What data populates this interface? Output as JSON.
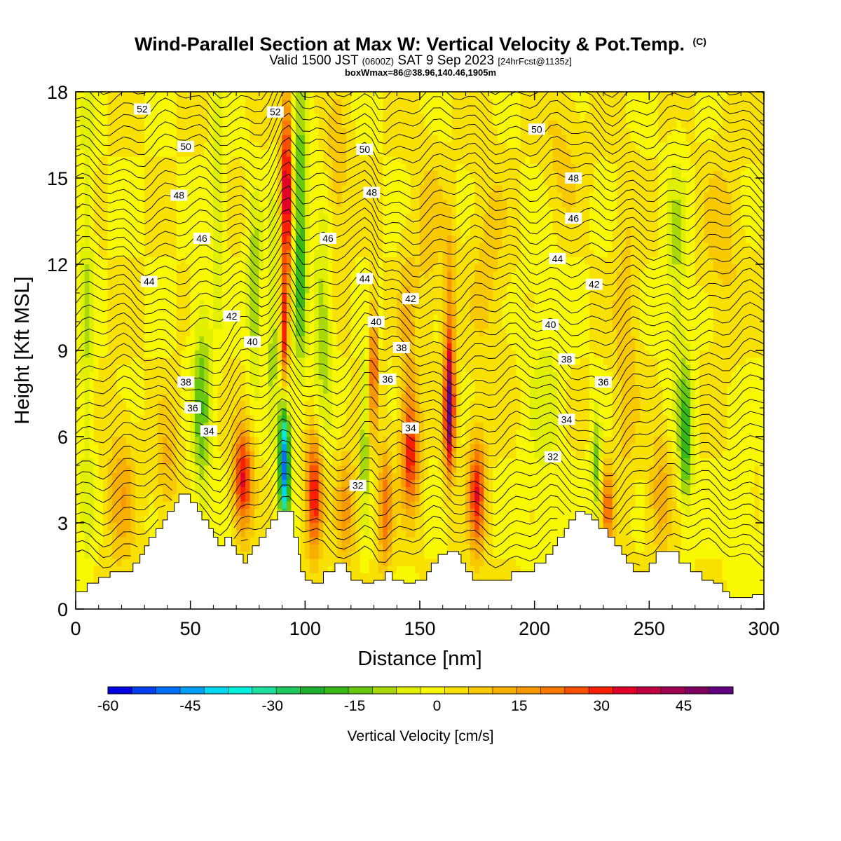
{
  "header": {
    "title": "Wind-Parallel Section at Max W: Vertical Velocity & Pot.Temp.",
    "title_tag": "(C)",
    "subtitle_valid": "Valid 1500 JST",
    "subtitle_zulu": "(0600Z)",
    "subtitle_date": "SAT 9 Sep 2023",
    "subtitle_fcst": "[24hrFcst@1135z]",
    "box_info": "boxWmax=86@38.96,140.46,1905m"
  },
  "chart_data": {
    "type": "heatmap",
    "xlabel": "Distance [nm]",
    "ylabel": "Height [Kft MSL]",
    "xlim": [
      0,
      300
    ],
    "ylim": [
      0,
      18
    ],
    "x_ticks": [
      "0",
      "50",
      "100",
      "150",
      "200",
      "250",
      "300"
    ],
    "y_ticks": [
      "0",
      "3",
      "6",
      "9",
      "12",
      "15",
      "18"
    ],
    "colorbar": {
      "label": "Vertical Velocity [cm/s]",
      "range": [
        -60,
        54
      ],
      "step": 4.5,
      "tick_labels": [
        "-60",
        "-45",
        "-30",
        "-15",
        "0",
        "15",
        "30",
        "45"
      ],
      "colors": [
        "#0000e0",
        "#0040f0",
        "#0070f8",
        "#00a0f8",
        "#00d8f0",
        "#00f0e0",
        "#20e0a0",
        "#20c860",
        "#20b030",
        "#38b818",
        "#68c810",
        "#a8d808",
        "#e0f000",
        "#f8f800",
        "#f8e000",
        "#f8c800",
        "#f8b000",
        "#f89800",
        "#f87800",
        "#f85000",
        "#f82000",
        "#e00028",
        "#c00040",
        "#a00050",
        "#800060",
        "#600080"
      ]
    },
    "contour_label": "Potential temperature (C)",
    "contour_levels": [
      "32",
      "34",
      "36",
      "38",
      "40",
      "42",
      "44",
      "46",
      "48",
      "50",
      "52"
    ],
    "terrain_kft": [
      [
        0,
        0.6
      ],
      [
        5,
        0.6
      ],
      [
        5,
        0.9
      ],
      [
        10,
        0.9
      ],
      [
        10,
        1.1
      ],
      [
        15,
        1.1
      ],
      [
        15,
        1.3
      ],
      [
        25,
        1.3
      ],
      [
        25,
        1.6
      ],
      [
        28,
        1.6
      ],
      [
        28,
        1.9
      ],
      [
        30,
        1.9
      ],
      [
        30,
        2.2
      ],
      [
        32,
        2.2
      ],
      [
        32,
        2.5
      ],
      [
        35,
        2.5
      ],
      [
        35,
        2.8
      ],
      [
        38,
        2.8
      ],
      [
        38,
        3.1
      ],
      [
        40,
        3.1
      ],
      [
        40,
        3.4
      ],
      [
        43,
        3.4
      ],
      [
        43,
        3.7
      ],
      [
        45,
        3.7
      ],
      [
        45,
        4.0
      ],
      [
        50,
        4.0
      ],
      [
        50,
        3.7
      ],
      [
        53,
        3.7
      ],
      [
        53,
        3.4
      ],
      [
        55,
        3.4
      ],
      [
        55,
        3.1
      ],
      [
        58,
        3.1
      ],
      [
        58,
        2.8
      ],
      [
        60,
        2.8
      ],
      [
        60,
        2.5
      ],
      [
        62,
        2.5
      ],
      [
        62,
        2.2
      ],
      [
        65,
        2.2
      ],
      [
        65,
        2.5
      ],
      [
        68,
        2.5
      ],
      [
        68,
        2.2
      ],
      [
        70,
        2.2
      ],
      [
        70,
        1.9
      ],
      [
        73,
        1.9
      ],
      [
        73,
        1.6
      ],
      [
        75,
        1.6
      ],
      [
        75,
        1.9
      ],
      [
        77,
        1.9
      ],
      [
        77,
        2.2
      ],
      [
        80,
        2.2
      ],
      [
        80,
        2.5
      ],
      [
        83,
        2.5
      ],
      [
        83,
        2.8
      ],
      [
        85,
        2.8
      ],
      [
        85,
        3.1
      ],
      [
        88,
        3.1
      ],
      [
        88,
        3.4
      ],
      [
        95,
        3.4
      ],
      [
        95,
        2.5
      ],
      [
        97,
        2.5
      ],
      [
        97,
        1.9
      ],
      [
        98,
        1.9
      ],
      [
        98,
        1.3
      ],
      [
        100,
        1.3
      ],
      [
        100,
        1.0
      ],
      [
        103,
        1.0
      ],
      [
        103,
        0.9
      ],
      [
        108,
        0.9
      ],
      [
        108,
        1.3
      ],
      [
        113,
        1.3
      ],
      [
        113,
        1.6
      ],
      [
        118,
        1.6
      ],
      [
        118,
        1.3
      ],
      [
        120,
        1.3
      ],
      [
        120,
        1.0
      ],
      [
        125,
        1.0
      ],
      [
        125,
        0.9
      ],
      [
        130,
        0.9
      ],
      [
        130,
        1.0
      ],
      [
        135,
        1.0
      ],
      [
        135,
        1.3
      ],
      [
        138,
        1.3
      ],
      [
        138,
        1.0
      ],
      [
        143,
        1.0
      ],
      [
        143,
        0.9
      ],
      [
        148,
        0.9
      ],
      [
        148,
        1.0
      ],
      [
        153,
        1.0
      ],
      [
        153,
        1.3
      ],
      [
        155,
        1.3
      ],
      [
        155,
        1.6
      ],
      [
        158,
        1.6
      ],
      [
        158,
        1.9
      ],
      [
        162,
        1.9
      ],
      [
        162,
        2.0
      ],
      [
        167,
        2.0
      ],
      [
        167,
        1.9
      ],
      [
        168,
        1.9
      ],
      [
        168,
        1.6
      ],
      [
        170,
        1.6
      ],
      [
        170,
        1.3
      ],
      [
        173,
        1.3
      ],
      [
        173,
        1.0
      ],
      [
        190,
        1.0
      ],
      [
        190,
        1.3
      ],
      [
        200,
        1.3
      ],
      [
        200,
        1.6
      ],
      [
        205,
        1.6
      ],
      [
        205,
        1.9
      ],
      [
        208,
        1.9
      ],
      [
        208,
        2.2
      ],
      [
        210,
        2.2
      ],
      [
        210,
        2.5
      ],
      [
        213,
        2.5
      ],
      [
        213,
        2.8
      ],
      [
        215,
        2.8
      ],
      [
        215,
        3.1
      ],
      [
        218,
        3.1
      ],
      [
        218,
        3.4
      ],
      [
        222,
        3.4
      ],
      [
        222,
        3.3
      ],
      [
        225,
        3.3
      ],
      [
        225,
        3.1
      ],
      [
        228,
        3.1
      ],
      [
        228,
        2.8
      ],
      [
        232,
        2.8
      ],
      [
        232,
        2.5
      ],
      [
        235,
        2.5
      ],
      [
        235,
        2.2
      ],
      [
        238,
        2.2
      ],
      [
        238,
        1.9
      ],
      [
        240,
        1.9
      ],
      [
        240,
        1.6
      ],
      [
        243,
        1.6
      ],
      [
        243,
        1.3
      ],
      [
        250,
        1.3
      ],
      [
        250,
        1.6
      ],
      [
        253,
        1.6
      ],
      [
        253,
        2.0
      ],
      [
        263,
        2.0
      ],
      [
        263,
        1.6
      ],
      [
        268,
        1.6
      ],
      [
        268,
        1.3
      ],
      [
        273,
        1.3
      ],
      [
        273,
        1.0
      ],
      [
        278,
        1.0
      ],
      [
        278,
        0.9
      ],
      [
        282,
        0.9
      ],
      [
        282,
        0.6
      ],
      [
        285,
        0.6
      ],
      [
        285,
        0.4
      ],
      [
        295,
        0.4
      ],
      [
        295,
        0.5
      ],
      [
        300,
        0.5
      ],
      [
        300,
        0
      ]
    ],
    "features": [
      {
        "x": 5,
        "z": 10,
        "sx": 3,
        "sz": 10,
        "w": -9
      },
      {
        "x": 20,
        "z": 4,
        "sx": 6,
        "sz": 2.5,
        "w": 12
      },
      {
        "x": 40,
        "z": 5,
        "sx": 5,
        "sz": 2,
        "w": 10
      },
      {
        "x": 55,
        "z": 7,
        "sx": 4,
        "sz": 4,
        "w": -16
      },
      {
        "x": 62,
        "z": 14,
        "sx": 3,
        "sz": 4,
        "w": -10
      },
      {
        "x": 73,
        "z": 4.5,
        "sx": 4,
        "sz": 1.8,
        "w": 33
      },
      {
        "x": 78,
        "z": 11,
        "sx": 3,
        "sz": 3,
        "w": -15
      },
      {
        "x": 86,
        "z": 10,
        "sx": 2.5,
        "sz": 4,
        "w": -12
      },
      {
        "x": 92,
        "z": 14.5,
        "sx": 2.2,
        "sz": 3.5,
        "w": 40
      },
      {
        "x": 91,
        "z": 9.5,
        "sx": 1.6,
        "sz": 2,
        "w": 28
      },
      {
        "x": 91,
        "z": 5,
        "sx": 2.2,
        "sz": 2.2,
        "w": -52
      },
      {
        "x": 98,
        "z": 13,
        "sx": 3,
        "sz": 5,
        "w": -22
      },
      {
        "x": 104,
        "z": 4,
        "sx": 3.5,
        "sz": 2,
        "w": 33
      },
      {
        "x": 108,
        "z": 10,
        "sx": 4,
        "sz": 4,
        "w": -12
      },
      {
        "x": 114,
        "z": 15,
        "sx": 5,
        "sz": 2.5,
        "w": 8
      },
      {
        "x": 118,
        "z": 3.5,
        "sx": 4,
        "sz": 2,
        "w": 15
      },
      {
        "x": 126,
        "z": 6,
        "sx": 1.4,
        "sz": 3,
        "w": -18
      },
      {
        "x": 130,
        "z": 8.5,
        "sx": 1.4,
        "sz": 2.2,
        "w": 30
      },
      {
        "x": 135,
        "z": 3.5,
        "sx": 3,
        "sz": 2,
        "w": 22
      },
      {
        "x": 146,
        "z": 5.5,
        "sx": 4,
        "sz": 2,
        "w": 30
      },
      {
        "x": 145,
        "z": 9.5,
        "sx": 3.5,
        "sz": 3,
        "w": 10
      },
      {
        "x": 154,
        "z": 13,
        "sx": 6,
        "sz": 3,
        "w": 7
      },
      {
        "x": 163,
        "z": 7,
        "sx": 2.2,
        "sz": 2.2,
        "w": 52
      },
      {
        "x": 163,
        "z": 11,
        "sx": 2.5,
        "sz": 2.5,
        "w": 14
      },
      {
        "x": 175,
        "z": 4,
        "sx": 3.5,
        "sz": 2,
        "w": 30
      },
      {
        "x": 180,
        "z": 12,
        "sx": 8,
        "sz": 4,
        "w": 6
      },
      {
        "x": 205,
        "z": 7,
        "sx": 8,
        "sz": 5,
        "w": -6
      },
      {
        "x": 212,
        "z": 16,
        "sx": 8,
        "sz": 2.5,
        "w": 6
      },
      {
        "x": 227,
        "z": 5,
        "sx": 2,
        "sz": 1.8,
        "w": -16
      },
      {
        "x": 232,
        "z": 3.5,
        "sx": 2.5,
        "sz": 1.5,
        "w": 20
      },
      {
        "x": 240,
        "z": 9,
        "sx": 5,
        "sz": 5,
        "w": 8
      },
      {
        "x": 262,
        "z": 12,
        "sx": 4,
        "sz": 4,
        "w": -10
      },
      {
        "x": 266,
        "z": 6,
        "sx": 3,
        "sz": 2.5,
        "w": -22
      },
      {
        "x": 255,
        "z": 4,
        "sx": 5,
        "sz": 2,
        "w": 12
      },
      {
        "x": 282,
        "z": 13,
        "sx": 8,
        "sz": 3,
        "w": 7
      },
      {
        "x": 290,
        "z": 3,
        "sx": 5,
        "sz": 2,
        "w": -6
      }
    ],
    "contour_labels": [
      {
        "text": "52",
        "x": 29,
        "z": 17.4
      },
      {
        "text": "52",
        "x": 87,
        "z": 17.3
      },
      {
        "text": "50",
        "x": 48,
        "z": 16.1
      },
      {
        "text": "50",
        "x": 126,
        "z": 16.0
      },
      {
        "text": "50",
        "x": 201,
        "z": 16.7
      },
      {
        "text": "48",
        "x": 45,
        "z": 14.4
      },
      {
        "text": "48",
        "x": 129,
        "z": 14.5
      },
      {
        "text": "48",
        "x": 217,
        "z": 15.0
      },
      {
        "text": "46",
        "x": 55,
        "z": 12.9
      },
      {
        "text": "46",
        "x": 110,
        "z": 12.9
      },
      {
        "text": "46",
        "x": 217,
        "z": 13.6
      },
      {
        "text": "44",
        "x": 32,
        "z": 11.4
      },
      {
        "text": "44",
        "x": 126,
        "z": 11.5
      },
      {
        "text": "44",
        "x": 210,
        "z": 12.2
      },
      {
        "text": "42",
        "x": 68,
        "z": 10.2
      },
      {
        "text": "42",
        "x": 146,
        "z": 10.8
      },
      {
        "text": "42",
        "x": 226,
        "z": 11.3
      },
      {
        "text": "40",
        "x": 77,
        "z": 9.3
      },
      {
        "text": "40",
        "x": 131,
        "z": 10.0
      },
      {
        "text": "40",
        "x": 207,
        "z": 9.9
      },
      {
        "text": "38",
        "x": 48,
        "z": 7.9
      },
      {
        "text": "38",
        "x": 142,
        "z": 9.1
      },
      {
        "text": "38",
        "x": 214,
        "z": 8.7
      },
      {
        "text": "36",
        "x": 51,
        "z": 7.0
      },
      {
        "text": "36",
        "x": 136,
        "z": 8.0
      },
      {
        "text": "36",
        "x": 230,
        "z": 7.9
      },
      {
        "text": "34",
        "x": 58,
        "z": 6.2
      },
      {
        "text": "34",
        "x": 146,
        "z": 6.3
      },
      {
        "text": "34",
        "x": 214,
        "z": 6.6
      },
      {
        "text": "32",
        "x": 123,
        "z": 4.3
      },
      {
        "text": "32",
        "x": 208,
        "z": 5.3
      }
    ]
  },
  "colors": {
    "terrain": "#ffffff",
    "contour_line": "#000000"
  }
}
